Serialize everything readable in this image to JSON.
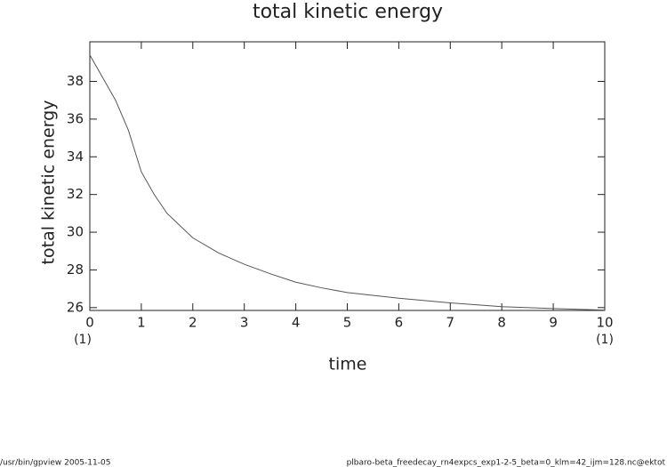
{
  "chart_data": {
    "type": "line",
    "title": "total kinetic energy",
    "x_label": "time",
    "y_label": "total kinetic energy",
    "x_unit_left": "(1)",
    "x_unit_right": "(1)",
    "x": [
      0,
      0.25,
      0.5,
      0.75,
      1,
      1.25,
      1.5,
      2,
      2.5,
      3,
      3.5,
      4,
      4.5,
      5,
      6,
      7,
      8,
      9,
      10
    ],
    "series": [
      {
        "color": "#555555",
        "values": [
          39.4,
          38.2,
          37.0,
          35.4,
          33.2,
          32.0,
          31.0,
          29.7,
          28.9,
          28.3,
          27.8,
          27.35,
          27.05,
          26.8,
          26.5,
          26.25,
          26.05,
          25.95,
          25.87
        ]
      }
    ],
    "xlim": [
      0,
      10
    ],
    "xticks": [
      0,
      1,
      2,
      3,
      4,
      5,
      6,
      7,
      8,
      9,
      10
    ],
    "ylim": [
      25.85,
      40.1
    ],
    "yticks": [
      26,
      28,
      30,
      32,
      34,
      36,
      38
    ],
    "footer_left": "/usr/bin/gpview   2005-11-05",
    "footer_right": "plbaro-beta_freedecay_rn4expcs_exp1-2-5_beta=0_klm=42_ijm=128.nc@ektot"
  }
}
